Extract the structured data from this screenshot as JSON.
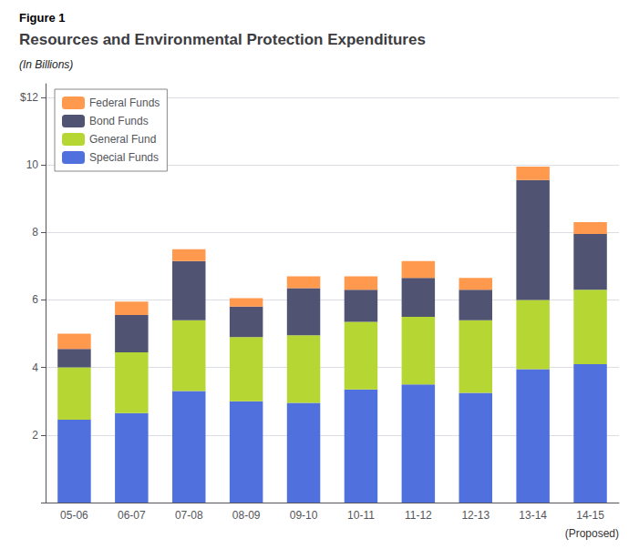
{
  "chart_data": {
    "type": "bar",
    "figure_label": "Figure 1",
    "title": "Resources and Environmental Protection Expenditures",
    "subtitle": "(In Billions)",
    "annotation": "(Proposed)",
    "categories": [
      "05-06",
      "06-07",
      "07-08",
      "08-09",
      "09-10",
      "10-11",
      "11-12",
      "12-13",
      "13-14",
      "14-15"
    ],
    "series": [
      {
        "name": "Special Funds",
        "values": [
          2.45,
          2.65,
          3.3,
          3.0,
          2.95,
          3.35,
          3.5,
          3.25,
          3.95,
          4.1
        ]
      },
      {
        "name": "General Fund",
        "values": [
          1.55,
          1.8,
          2.1,
          1.9,
          2.0,
          2.0,
          2.0,
          2.15,
          2.05,
          2.2
        ]
      },
      {
        "name": "Bond Funds",
        "values": [
          0.55,
          1.1,
          1.75,
          0.9,
          1.4,
          0.95,
          1.15,
          0.9,
          3.55,
          1.65
        ]
      },
      {
        "name": "Federal Funds",
        "values": [
          0.45,
          0.4,
          0.35,
          0.25,
          0.35,
          0.4,
          0.5,
          0.35,
          0.4,
          0.35
        ]
      }
    ],
    "stacked": true,
    "ylim": [
      0,
      12.4
    ],
    "yticks": [
      {
        "value": 0,
        "label": ""
      },
      2,
      4,
      6,
      8,
      10,
      {
        "value": 12,
        "label": "$12"
      }
    ],
    "grid": true,
    "legend": "upper left"
  }
}
